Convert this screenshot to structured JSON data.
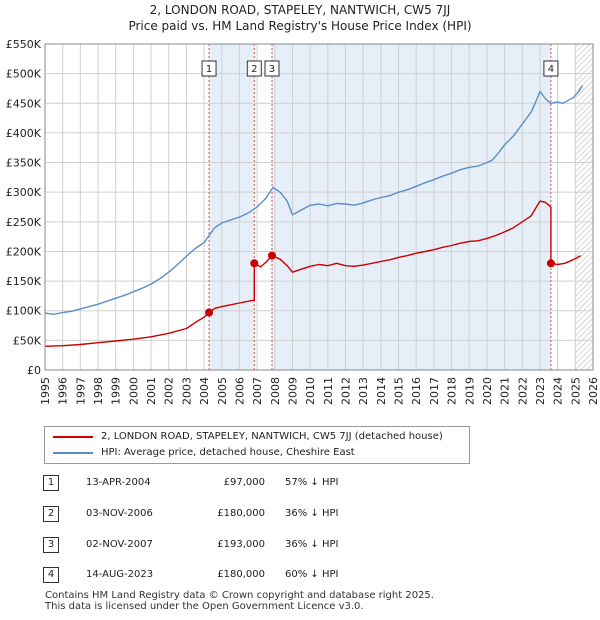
{
  "title_line1": "2, LONDON ROAD, STAPELEY, NANTWICH, CW5 7JJ",
  "title_line2": "Price paid vs. HM Land Registry's House Price Index (HPI)",
  "legend": {
    "property": "2, LONDON ROAD, STAPELEY, NANTWICH, CW5 7JJ (detached house)",
    "hpi": "HPI: Average price, detached house, Cheshire East"
  },
  "transactions": [
    {
      "num": "1",
      "date": "13-APR-2004",
      "price": "£97,000",
      "hpi": "57% ↓ HPI"
    },
    {
      "num": "2",
      "date": "03-NOV-2006",
      "price": "£180,000",
      "hpi": "36% ↓ HPI"
    },
    {
      "num": "3",
      "date": "02-NOV-2007",
      "price": "£193,000",
      "hpi": "36% ↓ HPI"
    },
    {
      "num": "4",
      "date": "14-AUG-2023",
      "price": "£180,000",
      "hpi": "60% ↓ HPI"
    }
  ],
  "footer": {
    "line1": "Contains HM Land Registry data © Crown copyright and database right 2025.",
    "line2": "This data is licensed under the Open Government Licence v3.0."
  },
  "colors": {
    "property": "#cc0000",
    "hpi": "#5b8ec7",
    "shade": "#e6eef8",
    "grid": "#d0d0d0",
    "marker_line": "#e05050"
  },
  "chart_data": {
    "type": "line",
    "xlim": [
      1995,
      2026
    ],
    "ylim": [
      0,
      550000
    ],
    "x_ticks": [
      "1995",
      "1996",
      "1997",
      "1998",
      "1999",
      "2000",
      "2001",
      "2002",
      "2003",
      "2004",
      "2005",
      "2006",
      "2007",
      "2008",
      "2009",
      "2010",
      "2011",
      "2012",
      "2013",
      "2014",
      "2015",
      "2016",
      "2017",
      "2018",
      "2019",
      "2020",
      "2021",
      "2022",
      "2023",
      "2024",
      "2025",
      "2026"
    ],
    "y_ticks": [
      {
        "value": 0,
        "label": "£0"
      },
      {
        "value": 50000,
        "label": "£50K"
      },
      {
        "value": 100000,
        "label": "£100K"
      },
      {
        "value": 150000,
        "label": "£150K"
      },
      {
        "value": 200000,
        "label": "£200K"
      },
      {
        "value": 250000,
        "label": "£250K"
      },
      {
        "value": 300000,
        "label": "£300K"
      },
      {
        "value": 350000,
        "label": "£350K"
      },
      {
        "value": 400000,
        "label": "£400K"
      },
      {
        "value": 450000,
        "label": "£450K"
      },
      {
        "value": 500000,
        "label": "£500K"
      },
      {
        "value": 550000,
        "label": "£550K"
      }
    ],
    "forecast_from": 2025.0,
    "shaded_ranges": [
      [
        2004.28,
        2006.84
      ],
      [
        2007.84,
        2023.62
      ]
    ],
    "series": [
      {
        "name": "HPI: Average price, detached house, Cheshire East",
        "x": [
          1995.0,
          1995.5,
          1996.0,
          1996.5,
          1997.0,
          1997.5,
          1998.0,
          1998.5,
          1999.0,
          1999.5,
          2000.0,
          2000.5,
          2001.0,
          2001.5,
          2002.0,
          2002.5,
          2003.0,
          2003.5,
          2004.0,
          2004.3,
          2004.6,
          2005.0,
          2005.5,
          2006.0,
          2006.5,
          2007.0,
          2007.5,
          2007.9,
          2008.3,
          2008.7,
          2009.0,
          2009.5,
          2010.0,
          2010.5,
          2011.0,
          2011.5,
          2012.0,
          2012.5,
          2013.0,
          2013.5,
          2014.0,
          2014.5,
          2015.0,
          2015.5,
          2016.0,
          2016.5,
          2017.0,
          2017.5,
          2018.0,
          2018.5,
          2019.0,
          2019.5,
          2020.0,
          2020.3,
          2020.7,
          2021.0,
          2021.5,
          2022.0,
          2022.5,
          2022.8,
          2023.0,
          2023.3,
          2023.6,
          2024.0,
          2024.3,
          2024.6,
          2024.9,
          2025.2,
          2025.4
        ],
        "values": [
          96000,
          94000,
          97000,
          99000,
          103000,
          107000,
          111000,
          116000,
          121000,
          126000,
          132000,
          138000,
          145000,
          154000,
          165000,
          178000,
          192000,
          205000,
          215000,
          228000,
          240000,
          248000,
          253000,
          258000,
          265000,
          275000,
          290000,
          308000,
          300000,
          285000,
          262000,
          270000,
          278000,
          280000,
          277000,
          281000,
          280000,
          278000,
          282000,
          287000,
          291000,
          294000,
          300000,
          304000,
          310000,
          316000,
          321000,
          327000,
          332000,
          338000,
          342000,
          344000,
          350000,
          354000,
          368000,
          380000,
          395000,
          415000,
          435000,
          455000,
          470000,
          458000,
          450000,
          452000,
          450000,
          455000,
          460000,
          470000,
          480000
        ]
      },
      {
        "name": "2, LONDON ROAD, STAPELEY, NANTWICH, CW5 7JJ (detached house)",
        "x": [
          1995.0,
          1996.0,
          1997.0,
          1998.0,
          1999.0,
          2000.0,
          2001.0,
          2002.0,
          2003.0,
          2003.6,
          2004.0,
          2004.28,
          2004.28,
          2004.6,
          2005.0,
          2005.5,
          2006.0,
          2006.5,
          2006.84,
          2006.84,
          2007.2,
          2007.5,
          2007.84,
          2007.84,
          2008.3,
          2008.7,
          2009.0,
          2009.5,
          2010.0,
          2010.5,
          2011.0,
          2011.5,
          2012.0,
          2012.5,
          2013.0,
          2013.5,
          2014.0,
          2014.5,
          2015.0,
          2015.5,
          2016.0,
          2016.5,
          2017.0,
          2017.5,
          2018.0,
          2018.5,
          2019.0,
          2019.5,
          2020.0,
          2020.5,
          2021.0,
          2021.5,
          2022.0,
          2022.5,
          2022.8,
          2023.0,
          2023.3,
          2023.62,
          2023.62,
          2024.0,
          2024.4,
          2024.8,
          2025.0,
          2025.3
        ],
        "values": [
          40000,
          41000,
          43000,
          46000,
          49000,
          52000,
          56000,
          62000,
          70000,
          82000,
          89000,
          97000,
          97000,
          104000,
          107000,
          110000,
          113000,
          116000,
          118000,
          180000,
          174000,
          182000,
          193000,
          193000,
          187000,
          176000,
          165000,
          170000,
          175000,
          178000,
          176000,
          180000,
          176000,
          175000,
          177000,
          180000,
          183000,
          186000,
          190000,
          193000,
          197000,
          200000,
          203000,
          207000,
          210000,
          214000,
          217000,
          218000,
          222000,
          227000,
          233000,
          240000,
          250000,
          260000,
          275000,
          285000,
          283000,
          275000,
          180000,
          178000,
          180000,
          185000,
          188000,
          193000
        ]
      }
    ],
    "markers": [
      {
        "label": "1",
        "x": 2004.28,
        "value": 97000
      },
      {
        "label": "2",
        "x": 2006.84,
        "value": 180000
      },
      {
        "label": "3",
        "x": 2007.84,
        "value": 193000
      },
      {
        "label": "4",
        "x": 2023.62,
        "value": 180000
      }
    ]
  }
}
